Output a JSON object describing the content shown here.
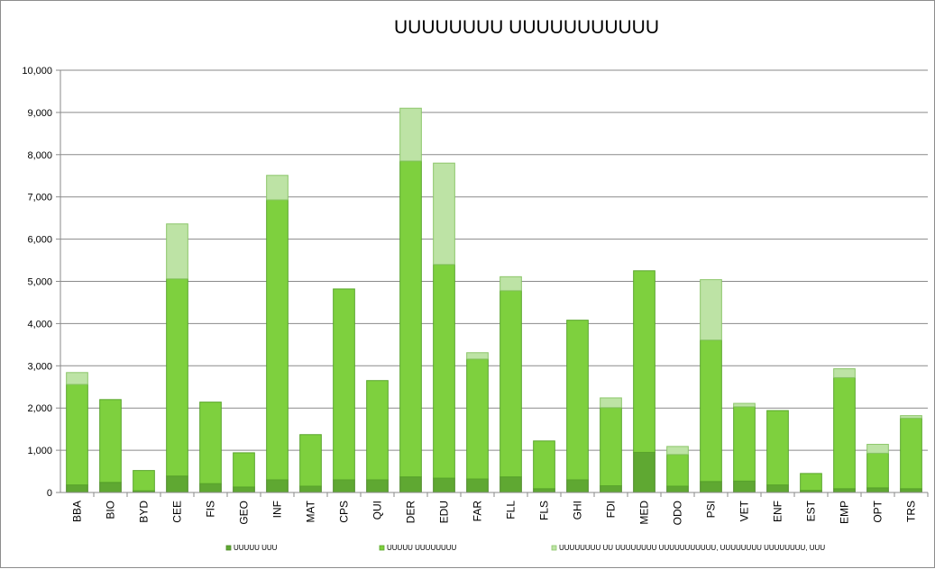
{
  "chart_data": {
    "type": "bar",
    "stacked": true,
    "title": "UUUUUUUU UUUUUUUUUUU",
    "xlabel": "",
    "ylabel": "",
    "ylim": [
      0,
      10000
    ],
    "yticks": [
      "0",
      "1,000",
      "2,000",
      "3,000",
      "4,000",
      "5,000",
      "6,000",
      "7,000",
      "8,000",
      "9,000",
      "10,000"
    ],
    "ytick_values": [
      0,
      1000,
      2000,
      3000,
      4000,
      5000,
      6000,
      7000,
      8000,
      9000,
      10000
    ],
    "grid": true,
    "legend_position": "bottom",
    "categories": [
      "BBA",
      "BIO",
      "BYD",
      "CEE",
      "FIS",
      "GEO",
      "INF",
      "MAT",
      "CPS",
      "QUI",
      "DER",
      "EDU",
      "FAR",
      "FLL",
      "FLS",
      "GHI",
      "FDI",
      "MED",
      "ODO",
      "PSI",
      "VET",
      "ENF",
      "EST",
      "EMP",
      "OPT",
      "TRS"
    ],
    "series": [
      {
        "name": "UUUUU UUU",
        "color": "#5fa832",
        "values": [
          180,
          240,
          40,
          390,
          210,
          130,
          300,
          150,
          300,
          300,
          370,
          340,
          320,
          370,
          90,
          300,
          160,
          950,
          150,
          260,
          270,
          180,
          50,
          90,
          110,
          90
        ]
      },
      {
        "name": "UUUUU UUUUUUUU",
        "color": "#7ed03e",
        "values": [
          2380,
          1960,
          480,
          4670,
          1930,
          810,
          6630,
          1220,
          4520,
          2350,
          7480,
          5060,
          2840,
          4410,
          1130,
          3780,
          1850,
          4300,
          750,
          3350,
          1760,
          1760,
          400,
          2630,
          820,
          1670
        ]
      },
      {
        "name": "UUUUUUUU UU UUUUUUUU UUUUUUUUUUU, UUUUUUUU UUUUUUUU, UUU",
        "color": "#bde3a5",
        "values": [
          280,
          0,
          0,
          1300,
          0,
          0,
          580,
          0,
          0,
          0,
          1250,
          2400,
          150,
          330,
          0,
          0,
          230,
          0,
          190,
          1430,
          80,
          0,
          0,
          210,
          210,
          60
        ]
      }
    ]
  }
}
